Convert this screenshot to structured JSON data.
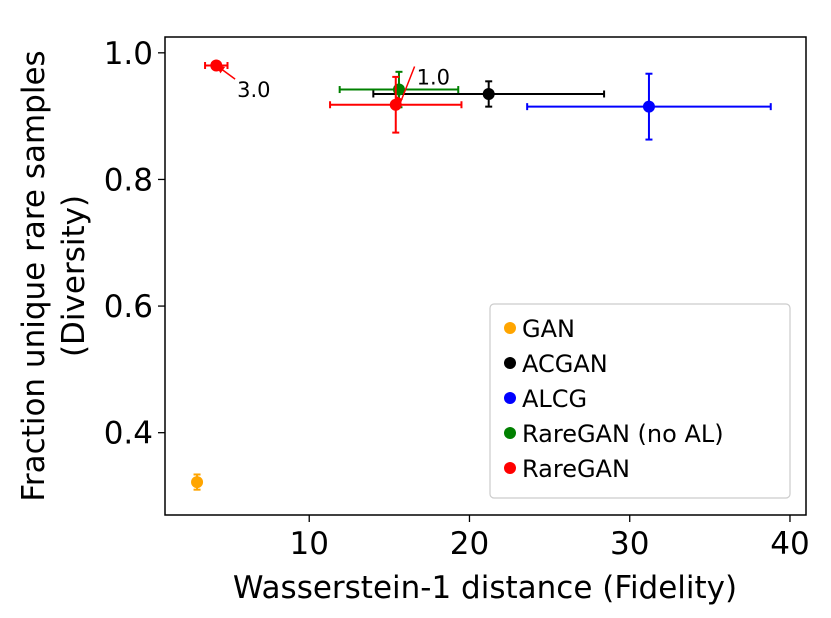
{
  "chart_data": {
    "type": "scatter",
    "title": "",
    "xlabel": "Wasserstein-1 distance (Fidelity)",
    "ylabel_line1": "Fraction unique rare samples",
    "ylabel_line2": "(Diversity)",
    "xlim": [
      1.0,
      41.0
    ],
    "ylim": [
      0.27,
      1.025
    ],
    "xticks": [
      10,
      20,
      30,
      40
    ],
    "yticks": [
      0.4,
      0.6,
      0.8,
      1.0
    ],
    "xtick_labels": [
      "10",
      "20",
      "30",
      "40"
    ],
    "ytick_labels": [
      "0.4",
      "0.6",
      "0.8",
      "1.0"
    ],
    "grid": false,
    "legend_position": "lower-right",
    "series": [
      {
        "name": "GAN",
        "color": "#ffa500",
        "points": [
          {
            "x": 3.0,
            "y": 0.322,
            "xerr": 0.0,
            "yerr": 0.012
          }
        ]
      },
      {
        "name": "ACGAN",
        "color": "#000000",
        "points": [
          {
            "x": 21.2,
            "y": 0.935,
            "xerr": 7.2,
            "yerr": 0.02
          }
        ]
      },
      {
        "name": "ALCG",
        "color": "#0000ff",
        "points": [
          {
            "x": 31.2,
            "y": 0.915,
            "xerr": 7.6,
            "yerr": 0.052
          }
        ]
      },
      {
        "name": "RareGAN (no AL)",
        "color": "#008000",
        "points": [
          {
            "x": 15.6,
            "y": 0.942,
            "xerr": 3.7,
            "yerr": 0.028
          }
        ]
      },
      {
        "name": "RareGAN",
        "color": "#ff0000",
        "points": [
          {
            "x": 4.2,
            "y": 0.98,
            "xerr": 0.7,
            "yerr": 0.006
          },
          {
            "x": 15.4,
            "y": 0.918,
            "xerr": 4.1,
            "yerr": 0.044
          }
        ]
      }
    ],
    "annotations": [
      {
        "text": "3.0",
        "x": 5.5,
        "y": 0.93,
        "arrow_to_x": 4.2,
        "arrow_to_y": 0.98,
        "color": "#ff0000"
      },
      {
        "text": "1.0",
        "x": 16.7,
        "y": 0.95,
        "arrow_to_x": 15.4,
        "arrow_to_y": 0.918,
        "color": "#ff0000"
      }
    ]
  }
}
